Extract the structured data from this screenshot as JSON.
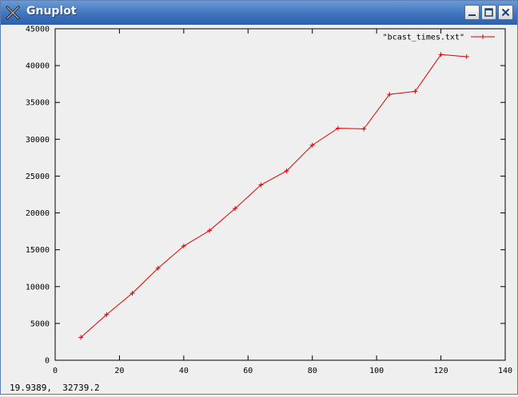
{
  "window": {
    "title": "Gnuplot",
    "icon": "gnuplot-x-icon",
    "buttons": [
      "minimize-icon",
      "maximize-icon",
      "close-icon"
    ]
  },
  "statusbar": {
    "coords": "19.9389,  32739.2"
  },
  "chart_data": {
    "type": "line",
    "title": "",
    "xlabel": "",
    "ylabel": "",
    "xlim": [
      0,
      140
    ],
    "ylim": [
      0,
      45000
    ],
    "xticks": [
      0,
      20,
      40,
      60,
      80,
      100,
      120,
      140
    ],
    "yticks": [
      0,
      5000,
      10000,
      15000,
      20000,
      25000,
      30000,
      35000,
      40000,
      45000
    ],
    "grid": false,
    "legend_position": "top-right",
    "series": [
      {
        "name": "\"bcast_times.txt\"",
        "color": "#e00000",
        "marker": "plus",
        "x": [
          8,
          16,
          24,
          32,
          40,
          48,
          56,
          64,
          72,
          80,
          88,
          96,
          104,
          112,
          120,
          128
        ],
        "y": [
          3100,
          6200,
          9100,
          12500,
          15500,
          17600,
          20600,
          23800,
          25700,
          29200,
          31500,
          31400,
          36100,
          36500,
          41500,
          41200
        ]
      }
    ]
  }
}
